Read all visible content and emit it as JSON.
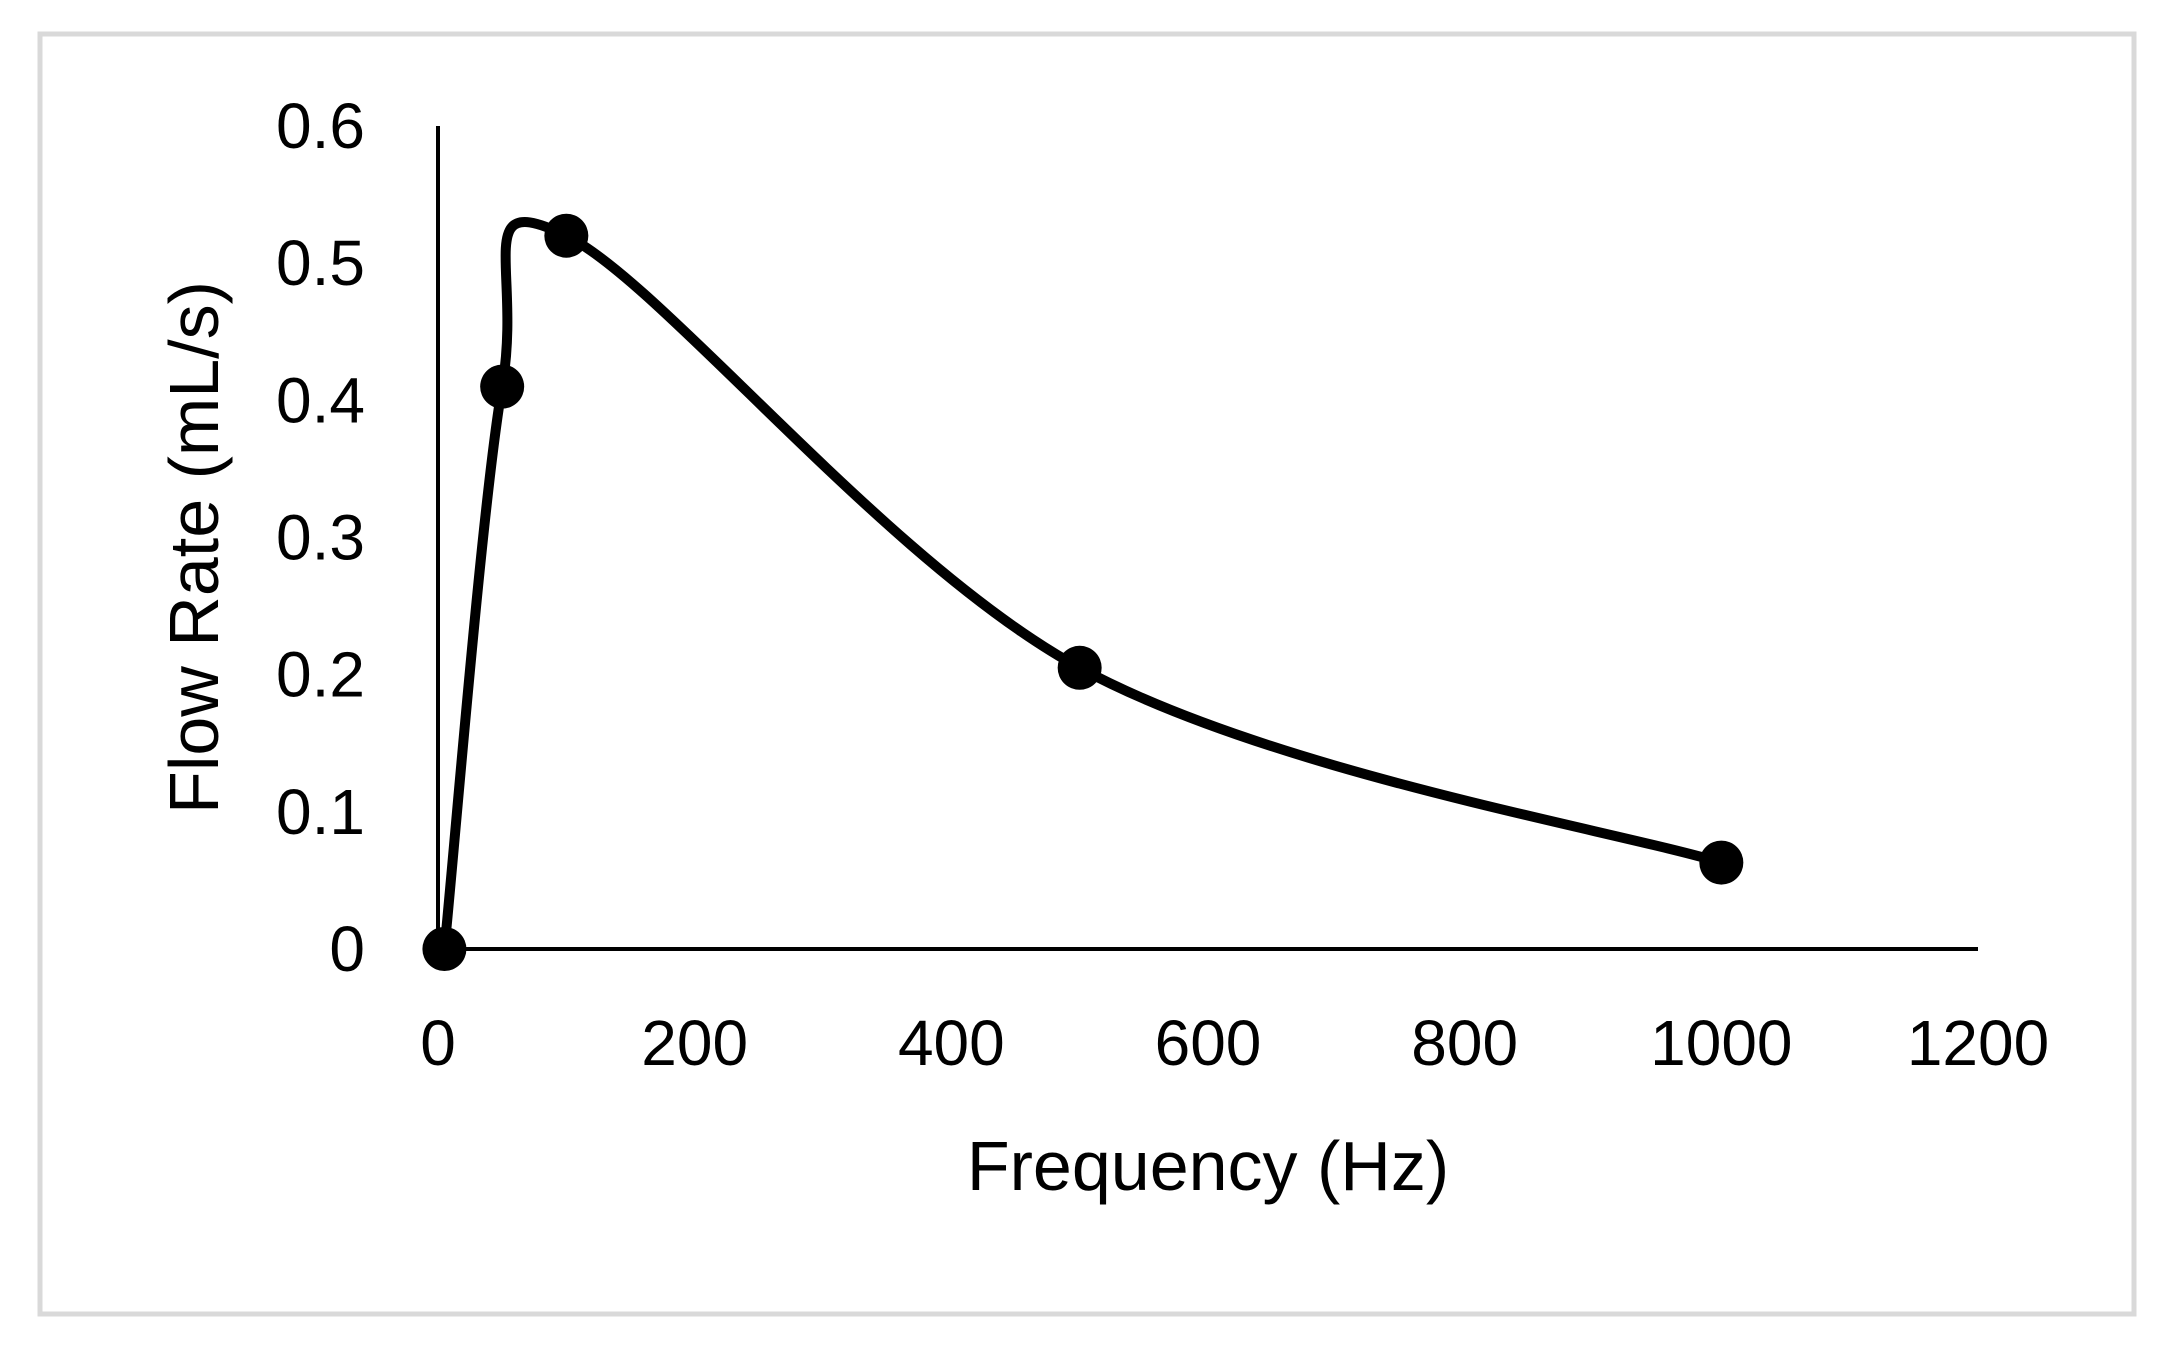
{
  "chart_data": {
    "type": "line",
    "title": "",
    "xlabel": "Frequency (Hz)",
    "ylabel": "Flow Rate (mL/s)",
    "xlim": [
      0,
      1200
    ],
    "ylim": [
      0,
      0.6
    ],
    "xticks": [
      0,
      200,
      400,
      600,
      800,
      1000,
      1200
    ],
    "yticks": [
      0,
      0.1,
      0.2,
      0.3,
      0.4,
      0.5,
      0.6
    ],
    "x_tick_labels": [
      "0",
      "200",
      "400",
      "600",
      "800",
      "1000",
      "1200"
    ],
    "y_tick_labels": [
      "0",
      "0.1",
      "0.2",
      "0.3",
      "0.4",
      "0.5",
      "0.6"
    ],
    "grid": false,
    "legend": "none",
    "smooth": true,
    "series": [
      {
        "name": "Flow Rate",
        "color": "#000000",
        "x": [
          5,
          50,
          100,
          500,
          1000
        ],
        "y": [
          0.0,
          0.41,
          0.52,
          0.205,
          0.063
        ]
      }
    ],
    "frame_color": "#d9d9d9"
  }
}
